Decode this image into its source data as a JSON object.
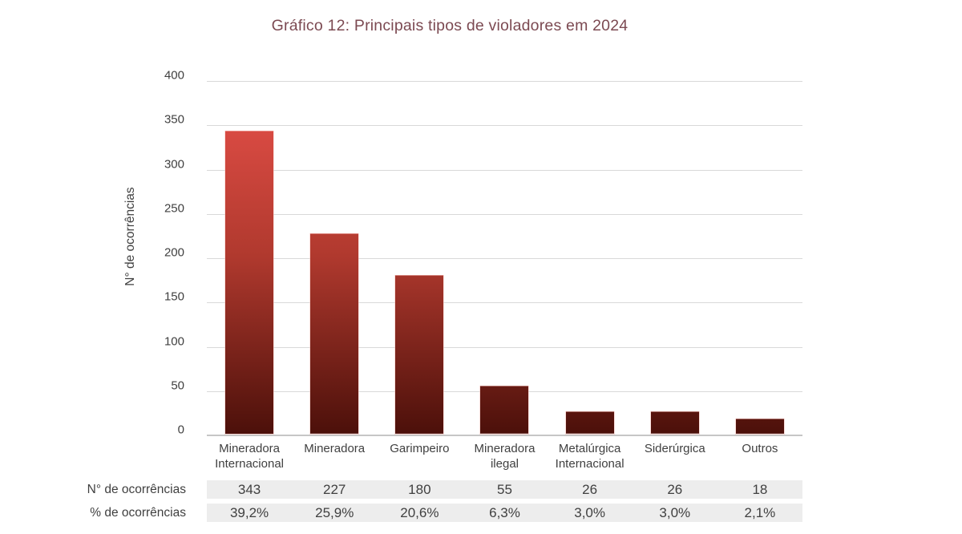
{
  "title": "Gráfico 12: Principais tipos de violadores em 2024",
  "chart_data": {
    "type": "bar",
    "title": "Gráfico 12: Principais tipos de violadores em 2024",
    "xlabel": "",
    "ylabel": "N° de ocorrências",
    "ylim": [
      0,
      400
    ],
    "yticks": [
      0,
      50,
      100,
      150,
      200,
      250,
      300,
      350,
      400
    ],
    "grid": true,
    "legend": "none",
    "categories": [
      "Mineradora\nInternacional",
      "Mineradora",
      "Garimpeiro",
      "Mineradora\nilegal",
      "Metalúrgica\nInternacional",
      "Siderúrgica",
      "Outros"
    ],
    "values": [
      343,
      227,
      180,
      55,
      26,
      26,
      18
    ],
    "table": {
      "rows": [
        {
          "label": "N° de ocorrências",
          "values": [
            "343",
            "227",
            "180",
            "55",
            "26",
            "26",
            "18"
          ]
        },
        {
          "label": "% de ocorrências",
          "values": [
            "39,2%",
            "25,9%",
            "20,6%",
            "6,3%",
            "3,0%",
            "3,0%",
            "2,1%"
          ]
        }
      ]
    }
  },
  "colors": {
    "title_text": "#7c4a52",
    "axis_text": "#404040",
    "gridline": "#d9d9d9",
    "baseline": "#c6c6c6",
    "bar_gradient_top": "#e8514a",
    "bar_gradient_bottom": "#4c100a",
    "table_band": "#ededed"
  }
}
